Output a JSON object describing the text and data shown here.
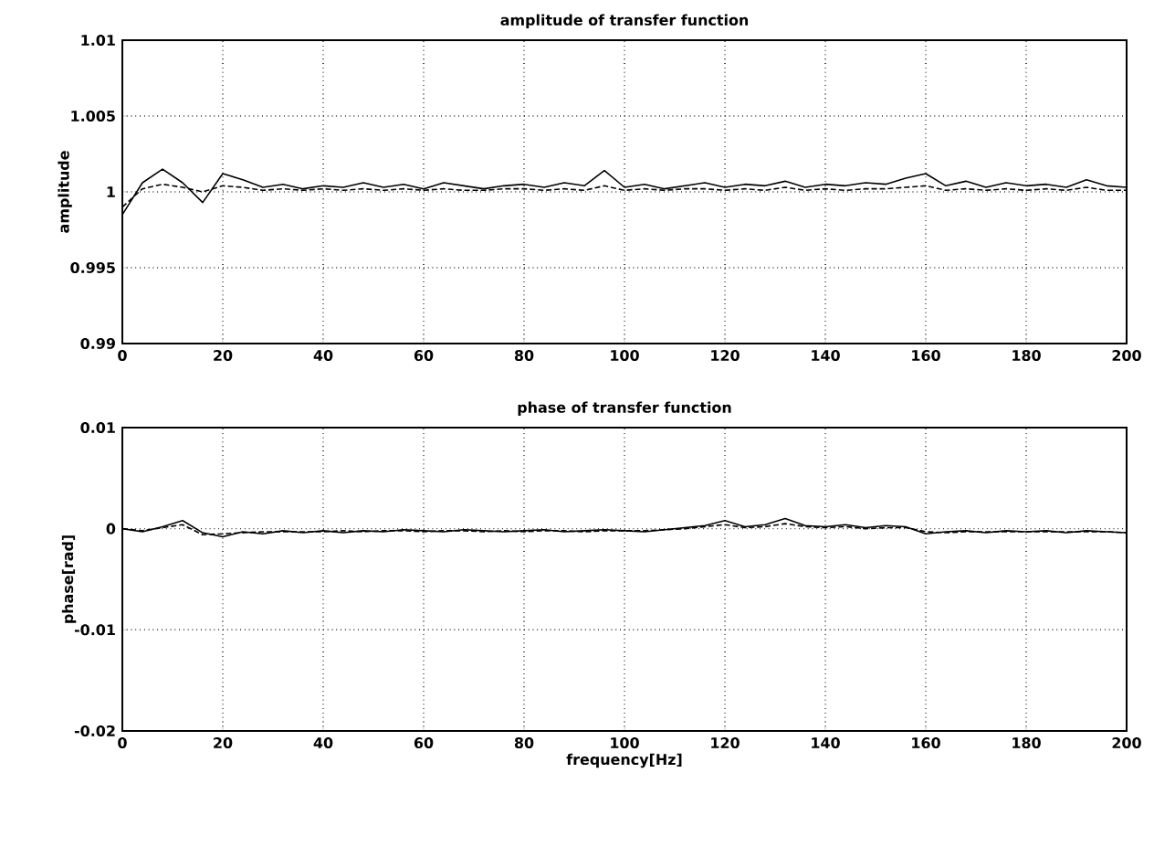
{
  "chart_data": [
    {
      "type": "line",
      "title": "amplitude of transfer function",
      "ylabel": "amplitude",
      "x": [
        0,
        4,
        8,
        12,
        16,
        20,
        24,
        28,
        32,
        36,
        40,
        44,
        48,
        52,
        56,
        60,
        64,
        68,
        72,
        76,
        80,
        84,
        88,
        92,
        96,
        100,
        104,
        108,
        112,
        116,
        120,
        124,
        128,
        132,
        136,
        140,
        144,
        148,
        152,
        156,
        160,
        164,
        168,
        172,
        176,
        180,
        184,
        188,
        192,
        196,
        200
      ],
      "series": [
        {
          "color": "#000000",
          "line_style": "solid",
          "values": [
            0.9985,
            1.0006,
            1.0015,
            1.0006,
            0.9993,
            1.0012,
            1.0008,
            1.0003,
            1.0005,
            1.0002,
            1.0004,
            1.0003,
            1.0006,
            1.0003,
            1.0005,
            1.0002,
            1.0006,
            1.0004,
            1.0002,
            1.0004,
            1.0005,
            1.0003,
            1.0006,
            1.0004,
            1.0014,
            1.0003,
            1.0005,
            1.0002,
            1.0004,
            1.0006,
            1.0003,
            1.0005,
            1.0004,
            1.0007,
            1.0003,
            1.0005,
            1.0004,
            1.0006,
            1.0005,
            1.0009,
            1.0012,
            1.0004,
            1.0007,
            1.0003,
            1.0006,
            1.0004,
            1.0005,
            1.0003,
            1.0008,
            1.0004,
            1.0003
          ]
        },
        {
          "color": "#000000",
          "line_style": "dashed",
          "values": [
            0.999,
            1.0002,
            1.0005,
            1.0003,
            1.0,
            1.0004,
            1.0003,
            1.0001,
            1.0002,
            1.0001,
            1.0002,
            1.0001,
            1.0002,
            1.0001,
            1.0002,
            1.0001,
            1.0002,
            1.0001,
            1.0001,
            1.0002,
            1.0002,
            1.0001,
            1.0002,
            1.0001,
            1.0004,
            1.0001,
            1.0002,
            1.0001,
            1.0002,
            1.0002,
            1.0001,
            1.0002,
            1.0001,
            1.0003,
            1.0001,
            1.0002,
            1.0001,
            1.0002,
            1.0002,
            1.0003,
            1.0004,
            1.0001,
            1.0002,
            1.0001,
            1.0002,
            1.0001,
            1.0002,
            1.0001,
            1.0003,
            1.0001,
            1.0001
          ]
        }
      ],
      "xlim": [
        0,
        200
      ],
      "ylim": [
        0.99,
        1.01
      ],
      "xticks": [
        0,
        20,
        40,
        60,
        80,
        100,
        120,
        140,
        160,
        180,
        200
      ],
      "yticks": [
        0.99,
        0.995,
        1,
        1.005,
        1.01
      ],
      "grid": true
    },
    {
      "type": "line",
      "title": "phase of transfer function",
      "xlabel": "frequency[Hz]",
      "ylabel": "phase[rad]",
      "x": [
        0,
        4,
        8,
        12,
        16,
        20,
        24,
        28,
        32,
        36,
        40,
        44,
        48,
        52,
        56,
        60,
        64,
        68,
        72,
        76,
        80,
        84,
        88,
        92,
        96,
        100,
        104,
        108,
        112,
        116,
        120,
        124,
        128,
        132,
        136,
        140,
        144,
        148,
        152,
        156,
        160,
        164,
        168,
        172,
        176,
        180,
        184,
        188,
        192,
        196,
        200
      ],
      "series": [
        {
          "color": "#000000",
          "line_style": "solid",
          "values": [
            0.0,
            -0.0003,
            0.0002,
            0.0008,
            -0.0004,
            -0.0008,
            -0.0003,
            -0.0005,
            -0.0002,
            -0.0004,
            -0.0002,
            -0.0004,
            -0.0002,
            -0.0003,
            -0.0001,
            -0.0002,
            -0.0003,
            -0.0001,
            -0.0002,
            -0.0003,
            -0.0002,
            -0.0001,
            -0.0003,
            -0.0002,
            -0.0001,
            -0.0002,
            -0.0003,
            -0.0001,
            0.0001,
            0.0003,
            0.0008,
            0.0002,
            0.0004,
            0.001,
            0.0003,
            0.0002,
            0.0004,
            0.0001,
            0.0003,
            0.0002,
            -0.0005,
            -0.0003,
            -0.0002,
            -0.0004,
            -0.0002,
            -0.0003,
            -0.0002,
            -0.0004,
            -0.0002,
            -0.0003,
            -0.0004
          ]
        },
        {
          "color": "#000000",
          "line_style": "dashed",
          "values": [
            0.0,
            -0.0002,
            0.0001,
            0.0004,
            -0.0006,
            -0.0005,
            -0.0004,
            -0.0003,
            -0.0003,
            -0.0003,
            -0.0003,
            -0.0002,
            -0.0003,
            -0.0002,
            -0.0002,
            -0.0003,
            -0.0002,
            -0.0002,
            -0.0003,
            -0.0002,
            -0.0003,
            -0.0002,
            -0.0002,
            -0.0003,
            -0.0002,
            -0.0002,
            -0.0002,
            -0.0001,
            0.0,
            0.0002,
            0.0004,
            0.0001,
            0.0002,
            0.0005,
            0.0002,
            0.0001,
            0.0002,
            0.0,
            0.0001,
            0.0001,
            -0.0003,
            -0.0004,
            -0.0003,
            -0.0003,
            -0.0003,
            -0.0003,
            -0.0003,
            -0.0003,
            -0.0003,
            -0.0003,
            -0.0004
          ]
        }
      ],
      "xlim": [
        0,
        200
      ],
      "ylim": [
        -0.02,
        0.01
      ],
      "xticks": [
        0,
        20,
        40,
        60,
        80,
        100,
        120,
        140,
        160,
        180,
        200
      ],
      "yticks": [
        -0.02,
        -0.01,
        0,
        0.01
      ],
      "grid": true
    }
  ]
}
